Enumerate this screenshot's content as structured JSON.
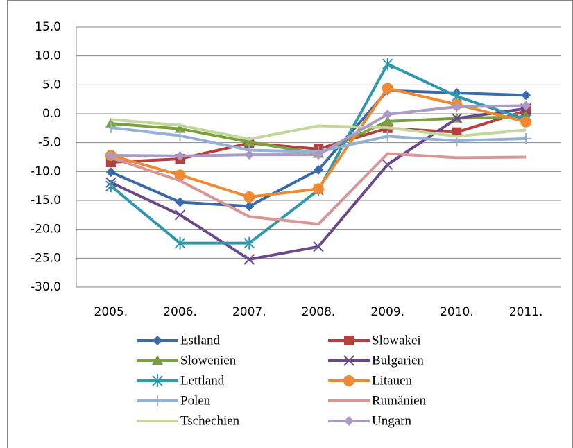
{
  "chart_data": {
    "type": "line",
    "categories": [
      "2005.",
      "2006.",
      "2007.",
      "2008.",
      "2009.",
      "2010.",
      "2011."
    ],
    "ylim": [
      -30,
      15
    ],
    "yticks": [
      {
        "value": -30,
        "label": "-30.0"
      },
      {
        "value": -25,
        "label": "-25.0"
      },
      {
        "value": -20,
        "label": "-20.0"
      },
      {
        "value": -15,
        "label": "-15.0"
      },
      {
        "value": -10,
        "label": "-10.0"
      },
      {
        "value": -5,
        "label": "-5.0"
      },
      {
        "value": 0,
        "label": "0.0"
      },
      {
        "value": 5,
        "label": "5.0"
      },
      {
        "value": 10,
        "label": "10.0"
      },
      {
        "value": 15,
        "label": "15.0"
      }
    ],
    "grid": true,
    "series": [
      {
        "name": "Estland",
        "color": "#3a6aa9",
        "marker": "diamond",
        "values": [
          -10.1,
          -15.3,
          -16.0,
          -9.7,
          4.0,
          3.6,
          3.2
        ]
      },
      {
        "name": "Slowakei",
        "color": "#b5403d",
        "marker": "square",
        "values": [
          -8.4,
          -7.8,
          -5.1,
          -6.1,
          -2.5,
          -3.2,
          0.5
        ]
      },
      {
        "name": "Slowenien",
        "color": "#79a03a",
        "marker": "triangle",
        "values": [
          -1.7,
          -2.6,
          -4.9,
          -6.9,
          -1.3,
          -0.8,
          -0.5
        ]
      },
      {
        "name": "Bulgarien",
        "color": "#6b4a8c",
        "marker": "x",
        "values": [
          -11.9,
          -17.5,
          -25.2,
          -23.0,
          -8.8,
          -0.8,
          0.9
        ]
      },
      {
        "name": "Lettland",
        "color": "#2e98ad",
        "marker": "star",
        "values": [
          -12.5,
          -22.4,
          -22.4,
          -13.2,
          8.6,
          3.0,
          -1.0
        ]
      },
      {
        "name": "Litauen",
        "color": "#ef8a33",
        "marker": "circle",
        "values": [
          -7.2,
          -10.6,
          -14.4,
          -13.0,
          4.4,
          1.6,
          -1.4
        ]
      },
      {
        "name": "Polen",
        "color": "#94b2d8",
        "marker": "plus",
        "values": [
          -2.4,
          -3.8,
          -6.3,
          -6.6,
          -3.9,
          -4.7,
          -4.3
        ]
      },
      {
        "name": "Rumänien",
        "color": "#d99694",
        "marker": "none",
        "values": [
          -7.6,
          -11.6,
          -17.8,
          -19.1,
          -6.9,
          -7.6,
          -7.5
        ]
      },
      {
        "name": "Tschechien",
        "color": "#c3d69b",
        "marker": "none",
        "values": [
          -1.0,
          -2.0,
          -4.4,
          -2.1,
          -2.4,
          -3.9,
          -2.8
        ]
      },
      {
        "name": "Ungarn",
        "color": "#ab9ac6",
        "marker": "diamond",
        "values": [
          -7.2,
          -7.3,
          -7.1,
          -7.1,
          -0.1,
          1.2,
          1.4
        ]
      }
    ]
  }
}
